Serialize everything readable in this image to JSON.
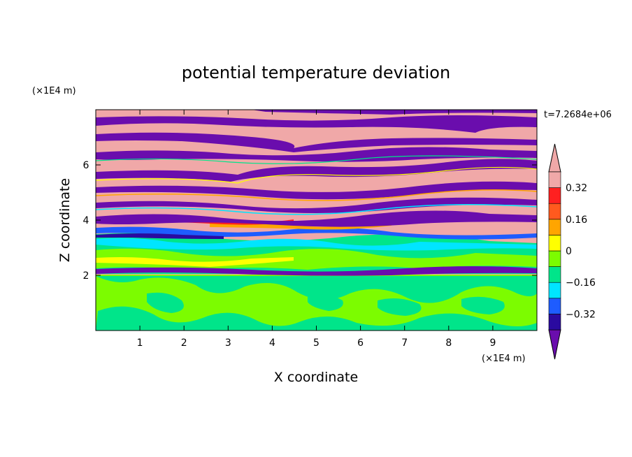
{
  "chart_data": {
    "type": "heatmap",
    "title": "potential temperature deviation",
    "xlabel": "X coordinate",
    "ylabel": "Z coordinate",
    "x_units": "(×1E4 m)",
    "y_units": "(×1E4 m)",
    "time_label": "t=7.2684e+06",
    "xlim": [
      0,
      10
    ],
    "ylim": [
      0,
      8
    ],
    "x_ticks": [
      "1",
      "2",
      "3",
      "4",
      "5",
      "6",
      "7",
      "8",
      "9"
    ],
    "x_tick_values": [
      1,
      2,
      3,
      4,
      5,
      6,
      7,
      8,
      9
    ],
    "y_ticks": [
      "2",
      "4",
      "6"
    ],
    "y_tick_values": [
      2,
      4,
      6
    ],
    "colorbar": {
      "levels": [
        -0.4,
        -0.32,
        -0.24,
        -0.16,
        -0.08,
        0,
        0.08,
        0.16,
        0.24,
        0.32,
        0.4
      ],
      "labels": [
        "0.32",
        "0.16",
        "0",
        "−0.16",
        "−0.32"
      ],
      "label_values": [
        0.32,
        0.16,
        0,
        -0.16,
        -0.32
      ],
      "colors": [
        "#6a0dad",
        "#2a0aa0",
        "#1e5cff",
        "#00e5ff",
        "#00e58a",
        "#7cfc00",
        "#ffff00",
        "#ffa500",
        "#ff5a1e",
        "#ff2020",
        "#f0a8a8"
      ],
      "extend": "both"
    },
    "colors": {
      "high": "#f0a8a8",
      "low": "#6a0dad",
      "green": "#7cfc00",
      "teal": "#00e58a"
    }
  }
}
